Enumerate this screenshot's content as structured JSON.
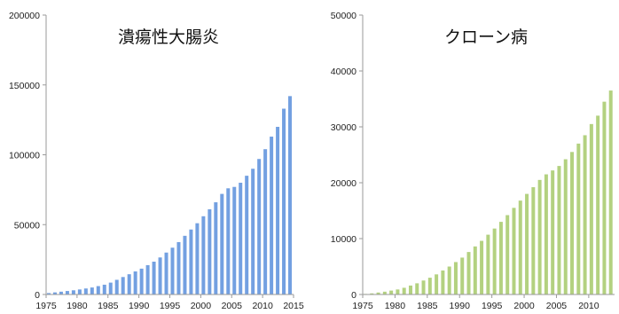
{
  "chart_data": [
    {
      "type": "bar",
      "title": "潰瘍性大腸炎",
      "x": [
        1975,
        1976,
        1977,
        1978,
        1979,
        1980,
        1981,
        1982,
        1983,
        1984,
        1985,
        1986,
        1987,
        1988,
        1989,
        1990,
        1991,
        1992,
        1993,
        1994,
        1995,
        1996,
        1997,
        1998,
        1999,
        2000,
        2001,
        2002,
        2003,
        2004,
        2005,
        2006,
        2007,
        2008,
        2009,
        2010,
        2011,
        2012,
        2013,
        2014
      ],
      "values": [
        1000,
        1500,
        2000,
        2500,
        3000,
        3600,
        4300,
        5000,
        6000,
        7000,
        8500,
        10500,
        12500,
        14500,
        16500,
        18500,
        21000,
        23500,
        26500,
        30000,
        33500,
        37500,
        42000,
        46500,
        51000,
        56000,
        61000,
        66000,
        72000,
        76000,
        77000,
        80000,
        85000,
        90000,
        97000,
        104000,
        113000,
        120000,
        133000,
        142000
      ],
      "xlim": [
        1975,
        2015
      ],
      "xticks": [
        1975,
        1980,
        1985,
        1990,
        1995,
        2000,
        2005,
        2010,
        2015
      ],
      "ylim": [
        0,
        200000
      ],
      "yticks": [
        0,
        50000,
        100000,
        150000,
        200000
      ],
      "color": "#5b8fdc"
    },
    {
      "type": "bar",
      "title": "クローン病",
      "x": [
        1975,
        1976,
        1977,
        1978,
        1979,
        1980,
        1981,
        1982,
        1983,
        1984,
        1985,
        1986,
        1987,
        1988,
        1989,
        1990,
        1991,
        1992,
        1993,
        1994,
        1995,
        1996,
        1997,
        1998,
        1999,
        2000,
        2001,
        2002,
        2003,
        2004,
        2005,
        2006,
        2007,
        2008,
        2009,
        2010,
        2011,
        2012,
        2013
      ],
      "values": [
        100,
        200,
        350,
        500,
        700,
        900,
        1200,
        1600,
        2000,
        2500,
        3000,
        3600,
        4300,
        5000,
        5800,
        6600,
        7600,
        8600,
        9600,
        10700,
        11800,
        13000,
        14200,
        15500,
        16800,
        18000,
        19200,
        20500,
        21500,
        22200,
        23000,
        24200,
        25500,
        27000,
        28500,
        30500,
        32000,
        34500,
        36500
      ],
      "xlim": [
        1975,
        2014
      ],
      "xticks": [
        1975,
        1980,
        1985,
        1990,
        1995,
        2000,
        2005,
        2010
      ],
      "ylim": [
        0,
        50000
      ],
      "yticks": [
        0,
        10000,
        20000,
        30000,
        40000,
        50000
      ],
      "color": "#a6c96a"
    }
  ]
}
